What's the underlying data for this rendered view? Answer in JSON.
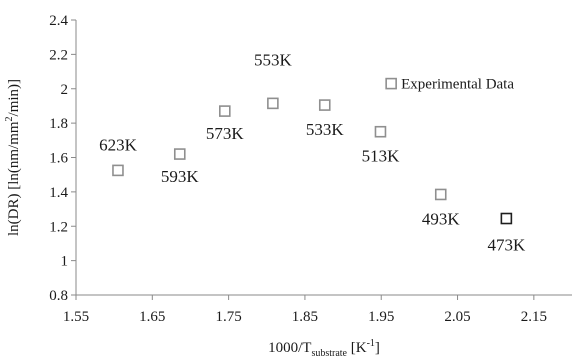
{
  "chart_data": {
    "type": "scatter",
    "x_axis": {
      "label_main": "1000/T",
      "label_sub": "substrate",
      "label_unit_pre": " [K",
      "label_unit_sup": "-1",
      "label_unit_post": "]",
      "range": [
        1.55,
        2.2
      ],
      "ticks": [
        1.55,
        1.65,
        1.75,
        1.85,
        1.95,
        2.05,
        2.15
      ],
      "tick_labels": [
        "1.55",
        "1.65",
        "1.75",
        "1.85",
        "1.95",
        "2.05",
        "2.15"
      ]
    },
    "y_axis": {
      "label_pre": "ln(DR) [ln(nm/mm",
      "label_sup": "2",
      "label_post": "/min)]",
      "range": [
        0.8,
        2.4
      ],
      "ticks": [
        0.8,
        1.0,
        1.2,
        1.4,
        1.6,
        1.8,
        2.0,
        2.2,
        2.4
      ],
      "tick_labels": [
        "0.8",
        "1",
        "1.2",
        "1.4",
        "1.6",
        "1.8",
        "2",
        "2.2",
        "2.4"
      ]
    },
    "grid": false,
    "legend": {
      "position": "top-right",
      "entries": [
        "Experimental Data"
      ]
    },
    "points": [
      {
        "x": 1.605,
        "y": 1.525,
        "label": "623K",
        "highlight": false
      },
      {
        "x": 1.686,
        "y": 1.62,
        "label": "593K",
        "highlight": false
      },
      {
        "x": 1.745,
        "y": 1.87,
        "label": "573K",
        "highlight": false
      },
      {
        "x": 1.808,
        "y": 1.915,
        "label": "553K",
        "highlight": false
      },
      {
        "x": 1.876,
        "y": 1.905,
        "label": "533K",
        "highlight": false
      },
      {
        "x": 1.949,
        "y": 1.75,
        "label": "513K",
        "highlight": false
      },
      {
        "x": 2.028,
        "y": 1.385,
        "label": "493K",
        "highlight": false
      },
      {
        "x": 2.114,
        "y": 1.245,
        "label": "473K",
        "highlight": true
      }
    ]
  },
  "colors": {
    "marker": "#8f8f8f",
    "marker_highlight": "#1e1e1e",
    "axis": "#8a8a8a",
    "text": "#1a1a1a"
  }
}
